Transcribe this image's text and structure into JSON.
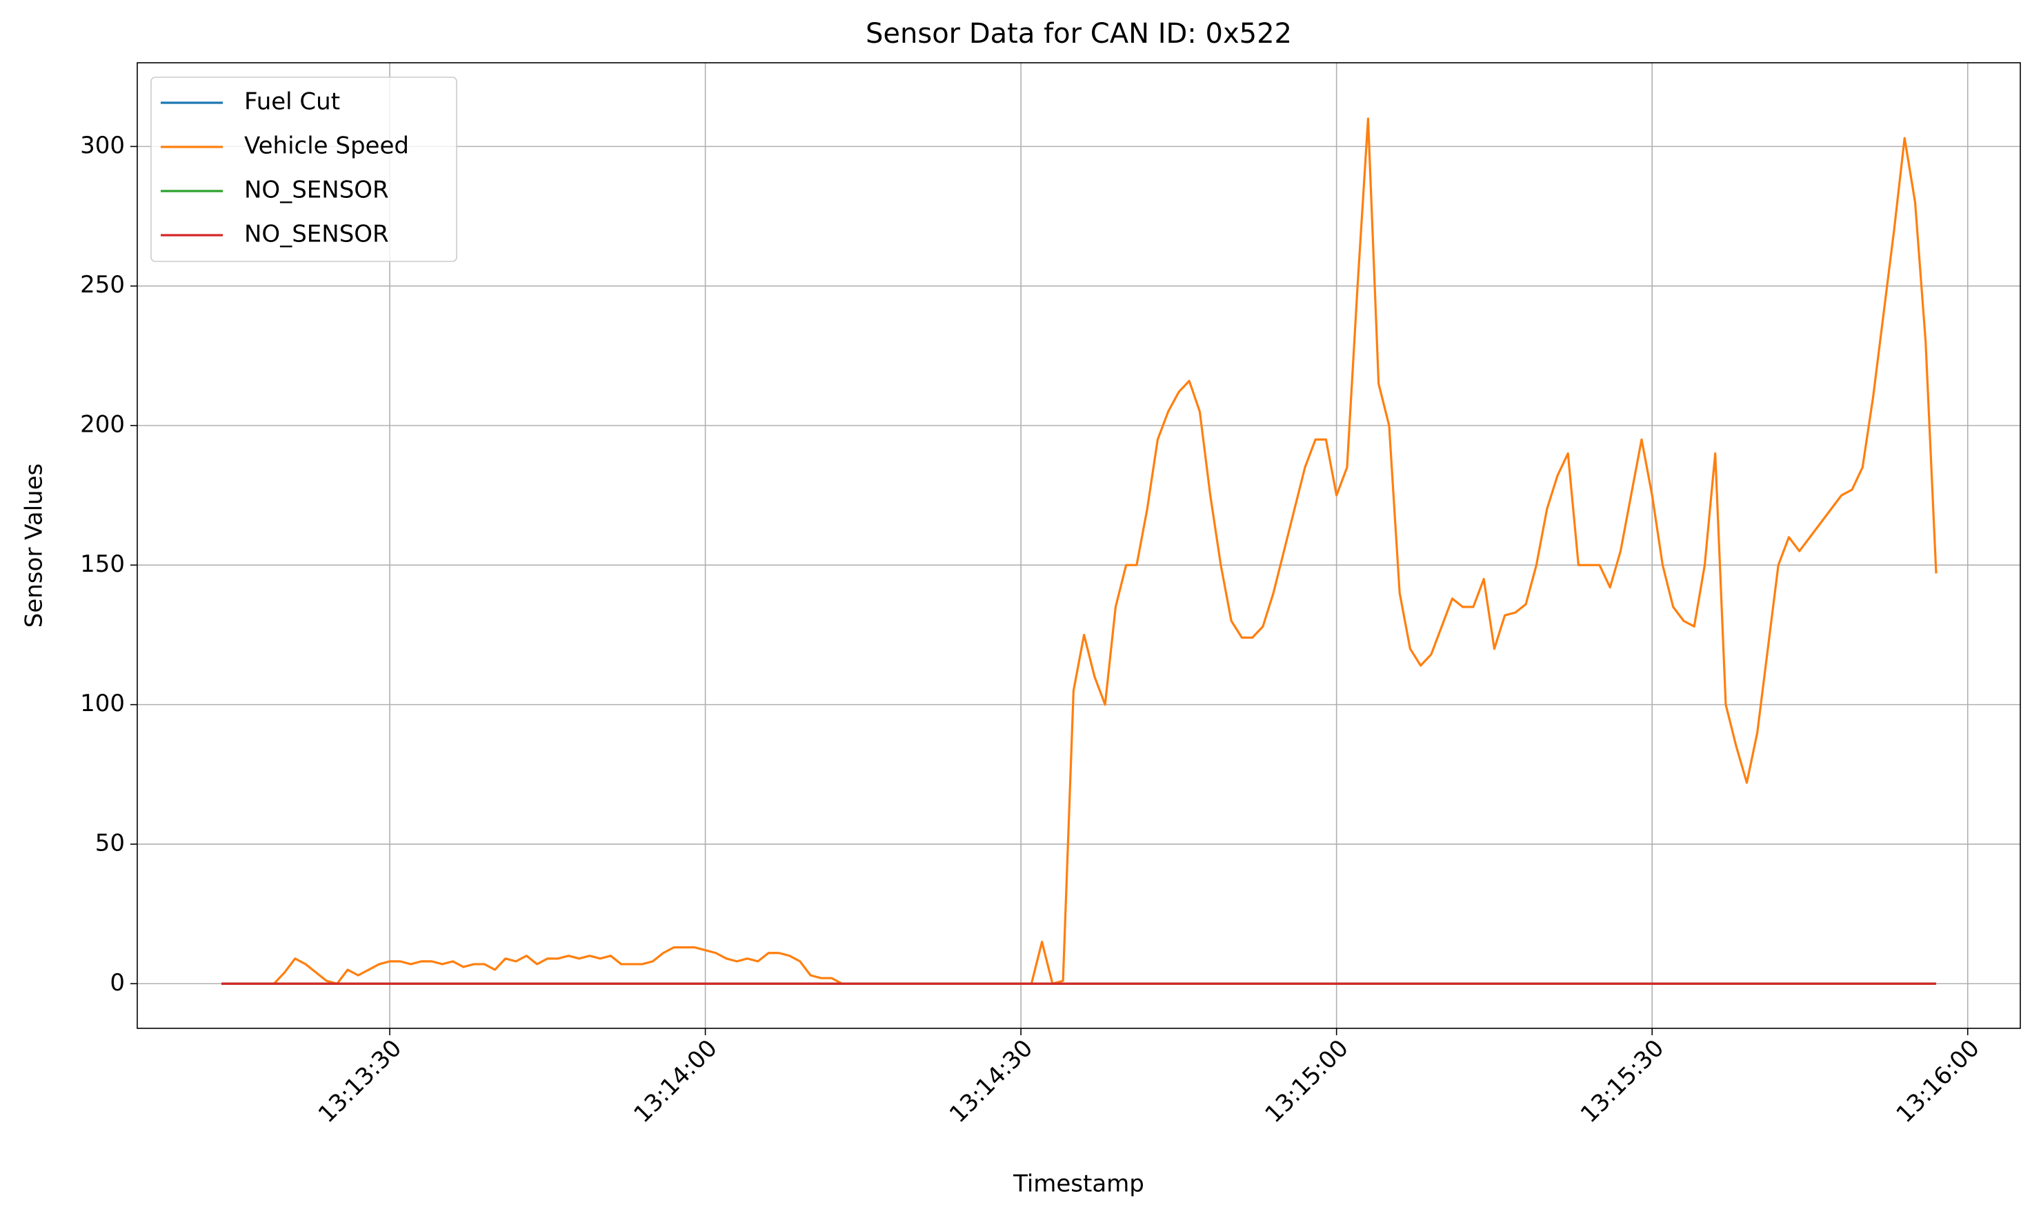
{
  "chart_data": {
    "type": "line",
    "title": "Sensor Data for CAN ID: 0x522",
    "x_label": "Timestamp",
    "y_label": "Sensor Values",
    "x": [
      "13:13:14",
      "13:13:15",
      "13:13:16",
      "13:13:17",
      "13:13:18",
      "13:13:19",
      "13:13:20",
      "13:13:21",
      "13:13:22",
      "13:13:23",
      "13:13:24",
      "13:13:25",
      "13:13:26",
      "13:13:27",
      "13:13:28",
      "13:13:29",
      "13:13:30",
      "13:13:31",
      "13:13:32",
      "13:13:33",
      "13:13:34",
      "13:13:35",
      "13:13:36",
      "13:13:37",
      "13:13:38",
      "13:13:39",
      "13:13:40",
      "13:13:41",
      "13:13:42",
      "13:13:43",
      "13:13:44",
      "13:13:45",
      "13:13:46",
      "13:13:47",
      "13:13:48",
      "13:13:49",
      "13:13:50",
      "13:13:51",
      "13:13:52",
      "13:13:53",
      "13:13:54",
      "13:13:55",
      "13:13:56",
      "13:13:57",
      "13:13:58",
      "13:13:59",
      "13:14:00",
      "13:14:01",
      "13:14:02",
      "13:14:03",
      "13:14:04",
      "13:14:05",
      "13:14:06",
      "13:14:07",
      "13:14:08",
      "13:14:09",
      "13:14:10",
      "13:14:11",
      "13:14:12",
      "13:14:13",
      "13:14:14",
      "13:14:15",
      "13:14:16",
      "13:14:17",
      "13:14:18",
      "13:14:19",
      "13:14:20",
      "13:14:21",
      "13:14:22",
      "13:14:23",
      "13:14:24",
      "13:14:25",
      "13:14:26",
      "13:14:27",
      "13:14:28",
      "13:14:29",
      "13:14:30",
      "13:14:31",
      "13:14:32",
      "13:14:33",
      "13:14:34",
      "13:14:35",
      "13:14:36",
      "13:14:37",
      "13:14:38",
      "13:14:39",
      "13:14:40",
      "13:14:41",
      "13:14:42",
      "13:14:43",
      "13:14:44",
      "13:14:45",
      "13:14:46",
      "13:14:47",
      "13:14:48",
      "13:14:49",
      "13:14:50",
      "13:14:51",
      "13:14:52",
      "13:14:53",
      "13:14:54",
      "13:14:55",
      "13:14:56",
      "13:14:57",
      "13:14:58",
      "13:14:59",
      "13:15:00",
      "13:15:01",
      "13:15:02",
      "13:15:03",
      "13:15:04",
      "13:15:05",
      "13:15:06",
      "13:15:07",
      "13:15:08",
      "13:15:09",
      "13:15:10",
      "13:15:11",
      "13:15:12",
      "13:15:13",
      "13:15:14",
      "13:15:15",
      "13:15:16",
      "13:15:17",
      "13:15:18",
      "13:15:19",
      "13:15:20",
      "13:15:21",
      "13:15:22",
      "13:15:23",
      "13:15:24",
      "13:15:25",
      "13:15:26",
      "13:15:27",
      "13:15:28",
      "13:15:29",
      "13:15:30",
      "13:15:31",
      "13:15:32",
      "13:15:33",
      "13:15:34",
      "13:15:35",
      "13:15:36",
      "13:15:37",
      "13:15:38",
      "13:15:39",
      "13:15:40",
      "13:15:41",
      "13:15:42",
      "13:15:43",
      "13:15:44",
      "13:15:45",
      "13:15:46",
      "13:15:47",
      "13:15:48",
      "13:15:49",
      "13:15:50",
      "13:15:51",
      "13:15:52",
      "13:15:53",
      "13:15:54",
      "13:15:55",
      "13:15:56",
      "13:15:57"
    ],
    "series": [
      {
        "name": "Fuel Cut",
        "color": "#1f77b4",
        "values": [
          0,
          0,
          0,
          0,
          0,
          0,
          0,
          0,
          0,
          0,
          0,
          0,
          0,
          0,
          0,
          0,
          0,
          0,
          0,
          0,
          0,
          0,
          0,
          0,
          0,
          0,
          0,
          0,
          0,
          0,
          0,
          0,
          0,
          0,
          0,
          0,
          0,
          0,
          0,
          0,
          0,
          0,
          0,
          0,
          0,
          0,
          0,
          0,
          0,
          0,
          0,
          0,
          0,
          0,
          0,
          0,
          0,
          0,
          0,
          0,
          0,
          0,
          0,
          0,
          0,
          0,
          0,
          0,
          0,
          0,
          0,
          0,
          0,
          0,
          0,
          0,
          0,
          0,
          0,
          0,
          0,
          0,
          0,
          0,
          0,
          0,
          0,
          0,
          0,
          0,
          0,
          0,
          0,
          0,
          0,
          0,
          0,
          0,
          0,
          0,
          0,
          0,
          0,
          0,
          0,
          0,
          0,
          0,
          0,
          0,
          0,
          0,
          0,
          0,
          0,
          0,
          0,
          0,
          0,
          0,
          0,
          0,
          0,
          0,
          0,
          0,
          0,
          0,
          0,
          0,
          0,
          0,
          0,
          0,
          0,
          0,
          0,
          0,
          0,
          0,
          0,
          0,
          0,
          0,
          0,
          0,
          0,
          0,
          0,
          0,
          0,
          0,
          0,
          0,
          0,
          0,
          0,
          0,
          0,
          0,
          0,
          0,
          0,
          0
        ]
      },
      {
        "name": "Vehicle Speed",
        "color": "#ff7f0e",
        "values": [
          0,
          0,
          0,
          0,
          0,
          0,
          4,
          9,
          7,
          4,
          1,
          0,
          5,
          3,
          5,
          7,
          8,
          8,
          7,
          8,
          8,
          7,
          8,
          6,
          7,
          7,
          5,
          9,
          8,
          10,
          7,
          9,
          9,
          10,
          9,
          10,
          9,
          10,
          7,
          7,
          7,
          8,
          11,
          13,
          13,
          13,
          12,
          11,
          9,
          8,
          9,
          8,
          11,
          11,
          10,
          8,
          3,
          2,
          2,
          0,
          0,
          0,
          0,
          0,
          0,
          0,
          0,
          0,
          0,
          0,
          0,
          0,
          0,
          0,
          0,
          0,
          0,
          0,
          15,
          0,
          1,
          105,
          125,
          110,
          100,
          135,
          150,
          150,
          170,
          195,
          205,
          212,
          216,
          205,
          175,
          150,
          130,
          124,
          124,
          128,
          140,
          155,
          170,
          185,
          195,
          195,
          175,
          185,
          250,
          310,
          215,
          200,
          140,
          120,
          114,
          118,
          128,
          138,
          135,
          135,
          145,
          120,
          132,
          133,
          136,
          150,
          170,
          182,
          190,
          150,
          150,
          150,
          142,
          155,
          175,
          195,
          175,
          150,
          135,
          130,
          128,
          150,
          190,
          100,
          85,
          72,
          90,
          120,
          150,
          160,
          155,
          160,
          165,
          170,
          175,
          177,
          185,
          210,
          240,
          270,
          303,
          280,
          230,
          147
        ]
      },
      {
        "name": "NO_SENSOR",
        "color": "#2ca02c",
        "values": [
          0,
          0,
          0,
          0,
          0,
          0,
          0,
          0,
          0,
          0,
          0,
          0,
          0,
          0,
          0,
          0,
          0,
          0,
          0,
          0,
          0,
          0,
          0,
          0,
          0,
          0,
          0,
          0,
          0,
          0,
          0,
          0,
          0,
          0,
          0,
          0,
          0,
          0,
          0,
          0,
          0,
          0,
          0,
          0,
          0,
          0,
          0,
          0,
          0,
          0,
          0,
          0,
          0,
          0,
          0,
          0,
          0,
          0,
          0,
          0,
          0,
          0,
          0,
          0,
          0,
          0,
          0,
          0,
          0,
          0,
          0,
          0,
          0,
          0,
          0,
          0,
          0,
          0,
          0,
          0,
          0,
          0,
          0,
          0,
          0,
          0,
          0,
          0,
          0,
          0,
          0,
          0,
          0,
          0,
          0,
          0,
          0,
          0,
          0,
          0,
          0,
          0,
          0,
          0,
          0,
          0,
          0,
          0,
          0,
          0,
          0,
          0,
          0,
          0,
          0,
          0,
          0,
          0,
          0,
          0,
          0,
          0,
          0,
          0,
          0,
          0,
          0,
          0,
          0,
          0,
          0,
          0,
          0,
          0,
          0,
          0,
          0,
          0,
          0,
          0,
          0,
          0,
          0,
          0,
          0,
          0,
          0,
          0,
          0,
          0,
          0,
          0,
          0,
          0,
          0,
          0,
          0,
          0,
          0,
          0,
          0,
          0,
          0,
          0
        ]
      },
      {
        "name": "NO_SENSOR",
        "color": "#d62728",
        "values": [
          0,
          0,
          0,
          0,
          0,
          0,
          0,
          0,
          0,
          0,
          0,
          0,
          0,
          0,
          0,
          0,
          0,
          0,
          0,
          0,
          0,
          0,
          0,
          0,
          0,
          0,
          0,
          0,
          0,
          0,
          0,
          0,
          0,
          0,
          0,
          0,
          0,
          0,
          0,
          0,
          0,
          0,
          0,
          0,
          0,
          0,
          0,
          0,
          0,
          0,
          0,
          0,
          0,
          0,
          0,
          0,
          0,
          0,
          0,
          0,
          0,
          0,
          0,
          0,
          0,
          0,
          0,
          0,
          0,
          0,
          0,
          0,
          0,
          0,
          0,
          0,
          0,
          0,
          0,
          0,
          0,
          0,
          0,
          0,
          0,
          0,
          0,
          0,
          0,
          0,
          0,
          0,
          0,
          0,
          0,
          0,
          0,
          0,
          0,
          0,
          0,
          0,
          0,
          0,
          0,
          0,
          0,
          0,
          0,
          0,
          0,
          0,
          0,
          0,
          0,
          0,
          0,
          0,
          0,
          0,
          0,
          0,
          0,
          0,
          0,
          0,
          0,
          0,
          0,
          0,
          0,
          0,
          0,
          0,
          0,
          0,
          0,
          0,
          0,
          0,
          0,
          0,
          0,
          0,
          0,
          0,
          0,
          0,
          0,
          0,
          0,
          0,
          0,
          0,
          0,
          0,
          0,
          0,
          0,
          0,
          0,
          0,
          0,
          0
        ]
      }
    ],
    "xlim": [
      "13:13:06",
      "13:16:05"
    ],
    "xticks": [
      "13:13:30",
      "13:14:00",
      "13:14:30",
      "13:15:00",
      "13:15:30",
      "13:16:00"
    ],
    "ylim": [
      -16,
      330
    ],
    "yticks": [
      0,
      50,
      100,
      150,
      200,
      250,
      300
    ],
    "grid": true,
    "legend": "upper left"
  }
}
